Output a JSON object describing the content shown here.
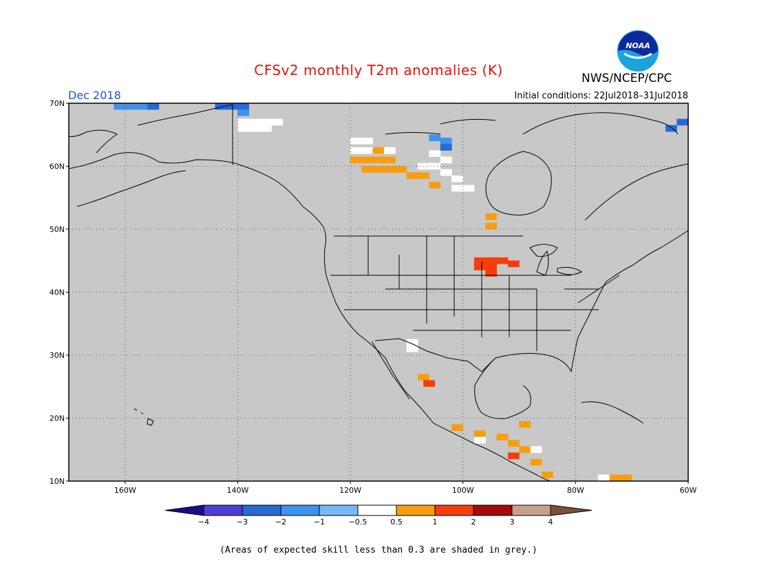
{
  "title": "CFSv2 monthly T2m anomalies (K)",
  "agency": "NWS/NCEP/CPC",
  "logo_text": "NOAA",
  "period": "Dec 2018",
  "initial_conditions": "Initial conditions: 22Jul2018–31Jul2018",
  "lat_labels": [
    "70N",
    "60N",
    "50N",
    "40N",
    "30N",
    "20N",
    "10N"
  ],
  "lon_labels": [
    "160W",
    "140W",
    "120W",
    "100W",
    "80W",
    "60W"
  ],
  "colorbar": {
    "labels": [
      "−4",
      "−3",
      "−2",
      "−1",
      "−0.5",
      "0.5",
      "1",
      "2",
      "3",
      "4"
    ],
    "colors": [
      "#1e0a8c",
      "#4e3fd4",
      "#2869d6",
      "#3f92ec",
      "#7ab8f5",
      "#ffffff",
      "#f79e0e",
      "#f73d0c",
      "#a30a0a",
      "#c9a08d",
      "#7f4f3e"
    ]
  },
  "footnote": "(Areas of expected skill less than 0.3 are shaded in grey.)",
  "colors": {
    "no_skill_grey": "#c8c8c8",
    "title_red": "#e8110b",
    "period_blue": "#1a55d6"
  },
  "chart_data": {
    "type": "heatmap",
    "variable": "T2m anomaly (K)",
    "lon_range": [
      -170,
      -60
    ],
    "lat_range": [
      10,
      70
    ],
    "grid_lines": "dotted, every 20 deg lon and 10 deg lat",
    "anomaly_cells": [
      {
        "lon": -161,
        "lat": 69.5,
        "v": -1
      },
      {
        "lon": -159,
        "lat": 69.5,
        "v": -1
      },
      {
        "lon": -157,
        "lat": 69.5,
        "v": -1
      },
      {
        "lon": -155,
        "lat": 69.5,
        "v": -2
      },
      {
        "lon": -141,
        "lat": 69.5,
        "v": -2
      },
      {
        "lon": -143,
        "lat": 69.5,
        "v": -2
      },
      {
        "lon": -139,
        "lat": 69.5,
        "v": -2
      },
      {
        "lon": -139,
        "lat": 68.5,
        "v": -1
      },
      {
        "lon": -139,
        "lat": 67,
        "v": 0
      },
      {
        "lon": -137,
        "lat": 67,
        "v": 0
      },
      {
        "lon": -135,
        "lat": 67,
        "v": 0
      },
      {
        "lon": -133,
        "lat": 67,
        "v": 0
      },
      {
        "lon": -139,
        "lat": 66,
        "v": 0
      },
      {
        "lon": -137,
        "lat": 66,
        "v": 0
      },
      {
        "lon": -135,
        "lat": 66,
        "v": 0
      },
      {
        "lon": -119,
        "lat": 64,
        "v": 0
      },
      {
        "lon": -117,
        "lat": 64,
        "v": 0
      },
      {
        "lon": -119,
        "lat": 62.5,
        "v": 0
      },
      {
        "lon": -117,
        "lat": 62.5,
        "v": 0
      },
      {
        "lon": -115,
        "lat": 62.5,
        "v": 0.5
      },
      {
        "lon": -113,
        "lat": 62.5,
        "v": 0
      },
      {
        "lon": -119,
        "lat": 61,
        "v": 0.5
      },
      {
        "lon": -117,
        "lat": 61,
        "v": 0.5
      },
      {
        "lon": -115,
        "lat": 61,
        "v": 0.5
      },
      {
        "lon": -113,
        "lat": 61,
        "v": 0.5
      },
      {
        "lon": -117,
        "lat": 59.5,
        "v": 0.5
      },
      {
        "lon": -115,
        "lat": 59.5,
        "v": 0.5
      },
      {
        "lon": -113,
        "lat": 59.5,
        "v": 0.5
      },
      {
        "lon": -111,
        "lat": 59.5,
        "v": 0.5
      },
      {
        "lon": -109,
        "lat": 58.5,
        "v": 0.5
      },
      {
        "lon": -107,
        "lat": 58.5,
        "v": 0.5
      },
      {
        "lon": -105,
        "lat": 64.5,
        "v": -1
      },
      {
        "lon": -103,
        "lat": 64,
        "v": -1
      },
      {
        "lon": -103,
        "lat": 63,
        "v": -1.5
      },
      {
        "lon": -105,
        "lat": 62,
        "v": 0
      },
      {
        "lon": -103,
        "lat": 61,
        "v": 0
      },
      {
        "lon": -105,
        "lat": 60,
        "v": 0
      },
      {
        "lon": -103,
        "lat": 59,
        "v": 0
      },
      {
        "lon": -107,
        "lat": 60,
        "v": 0
      },
      {
        "lon": -101,
        "lat": 58,
        "v": 0
      },
      {
        "lon": -99,
        "lat": 56.5,
        "v": 0
      },
      {
        "lon": -101,
        "lat": 56.5,
        "v": 0
      },
      {
        "lon": -105,
        "lat": 57,
        "v": 0.5
      },
      {
        "lon": -95,
        "lat": 52,
        "v": 0.5
      },
      {
        "lon": -95,
        "lat": 50.5,
        "v": 0.5
      },
      {
        "lon": -97,
        "lat": 45,
        "v": 1
      },
      {
        "lon": -95,
        "lat": 45,
        "v": 1
      },
      {
        "lon": -93,
        "lat": 45,
        "v": 1
      },
      {
        "lon": -91,
        "lat": 44.5,
        "v": 1
      },
      {
        "lon": -97,
        "lat": 44,
        "v": 1
      },
      {
        "lon": -95,
        "lat": 44,
        "v": 1
      },
      {
        "lon": -95,
        "lat": 43,
        "v": 1
      },
      {
        "lon": -109,
        "lat": 32,
        "v": 0
      },
      {
        "lon": -109,
        "lat": 31,
        "v": 0
      },
      {
        "lon": -107,
        "lat": 26.5,
        "v": 0.5
      },
      {
        "lon": -106,
        "lat": 25.5,
        "v": 1
      },
      {
        "lon": -101,
        "lat": 18.5,
        "v": 0.5
      },
      {
        "lon": -97,
        "lat": 17.5,
        "v": 0.5
      },
      {
        "lon": -97,
        "lat": 16.5,
        "v": 0
      },
      {
        "lon": -93,
        "lat": 17,
        "v": 0.5
      },
      {
        "lon": -91,
        "lat": 16,
        "v": 0.5
      },
      {
        "lon": -89,
        "lat": 15,
        "v": 0.5
      },
      {
        "lon": -91,
        "lat": 14,
        "v": 1
      },
      {
        "lon": -87,
        "lat": 13,
        "v": 0.5
      },
      {
        "lon": -85,
        "lat": 11,
        "v": 0.5
      },
      {
        "lon": -89,
        "lat": 19,
        "v": 0.5
      },
      {
        "lon": -87,
        "lat": 15,
        "v": 0
      },
      {
        "lon": -73,
        "lat": 10.5,
        "v": 0.5
      },
      {
        "lon": -71,
        "lat": 10.5,
        "v": 0.5
      },
      {
        "lon": -75,
        "lat": 10.5,
        "v": 0
      },
      {
        "lon": -63,
        "lat": 66,
        "v": -2
      },
      {
        "lon": -61,
        "lat": 67,
        "v": -2
      }
    ]
  }
}
